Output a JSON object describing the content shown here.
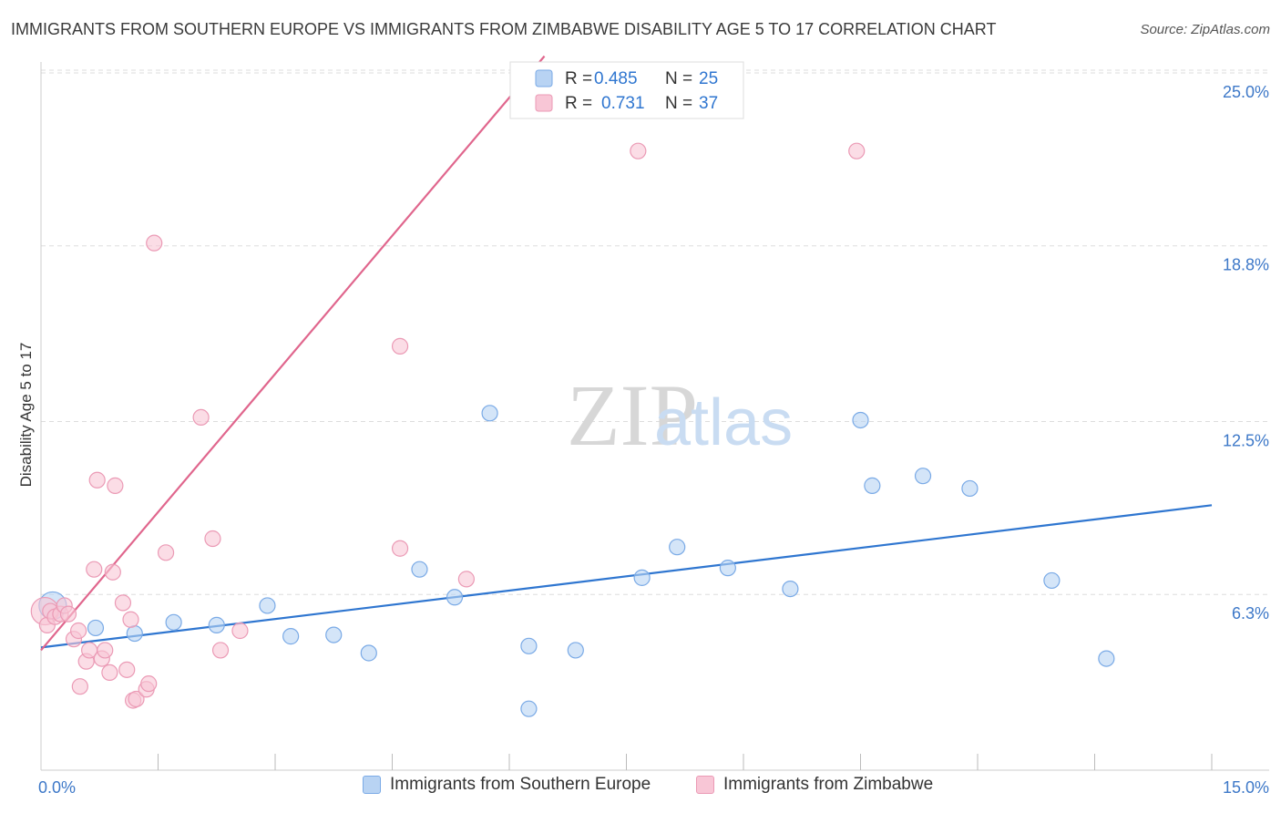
{
  "title": "IMMIGRANTS FROM SOUTHERN EUROPE VS IMMIGRANTS FROM ZIMBABWE DISABILITY AGE 5 TO 17 CORRELATION CHART",
  "source": "Source: ZipAtlas.com",
  "watermark": {
    "zip": "ZIP",
    "atlas": "atlas"
  },
  "colors": {
    "blue": "#2f76d0",
    "blue_fill": "#b8d3f3",
    "pink": "#e0668d",
    "pink_fill": "#f8c6d6",
    "axis_label": "#3d78c8",
    "grid": "#dddddd"
  },
  "chart_data": {
    "type": "scatter",
    "ylabel": "Disability Age 5 to 17",
    "xlim": [
      0,
      15
    ],
    "ylim": [
      0,
      25
    ],
    "x_tick_labels": [
      {
        "value": 0,
        "label": "0.0%"
      },
      {
        "value": 15,
        "label": "15.0%"
      }
    ],
    "y_ticks": [
      {
        "value": 6.3,
        "label": "6.3%"
      },
      {
        "value": 12.5,
        "label": "12.5%"
      },
      {
        "value": 18.8,
        "label": "18.8%"
      },
      {
        "value": 25.0,
        "label": "25.0%"
      }
    ],
    "series": [
      {
        "name": "Immigrants from Southern Europe",
        "color": "#2f76d0",
        "R": "0.485",
        "N": "25",
        "trend": {
          "x": [
            0,
            15
          ],
          "y": [
            4.4,
            9.5
          ]
        },
        "points": [
          {
            "x": 0.15,
            "y": 5.9,
            "big": true
          },
          {
            "x": 0.7,
            "y": 5.1
          },
          {
            "x": 1.2,
            "y": 4.9
          },
          {
            "x": 1.7,
            "y": 5.3
          },
          {
            "x": 2.25,
            "y": 5.2
          },
          {
            "x": 2.9,
            "y": 5.9
          },
          {
            "x": 3.2,
            "y": 4.8
          },
          {
            "x": 3.75,
            "y": 4.85
          },
          {
            "x": 4.2,
            "y": 4.2
          },
          {
            "x": 4.85,
            "y": 7.2
          },
          {
            "x": 5.3,
            "y": 6.2
          },
          {
            "x": 5.75,
            "y": 12.8
          },
          {
            "x": 6.25,
            "y": 2.2
          },
          {
            "x": 6.25,
            "y": 4.45
          },
          {
            "x": 6.85,
            "y": 4.3
          },
          {
            "x": 7.7,
            "y": 6.9
          },
          {
            "x": 8.15,
            "y": 8.0
          },
          {
            "x": 8.8,
            "y": 7.25
          },
          {
            "x": 9.6,
            "y": 6.5
          },
          {
            "x": 10.5,
            "y": 12.55
          },
          {
            "x": 10.65,
            "y": 10.2
          },
          {
            "x": 11.3,
            "y": 10.55
          },
          {
            "x": 11.9,
            "y": 10.1
          },
          {
            "x": 12.95,
            "y": 6.8
          },
          {
            "x": 13.65,
            "y": 4.0
          }
        ]
      },
      {
        "name": "Immigrants from Zimbabwe",
        "color": "#e0668d",
        "R": "0.731",
        "N": "37",
        "trend": {
          "x": [
            0,
            6.45
          ],
          "y": [
            4.3,
            25.6
          ]
        },
        "points": [
          {
            "x": 0.05,
            "y": 5.7,
            "big": true
          },
          {
            "x": 0.08,
            "y": 5.2
          },
          {
            "x": 0.12,
            "y": 5.7
          },
          {
            "x": 0.18,
            "y": 5.5
          },
          {
            "x": 0.25,
            "y": 5.6
          },
          {
            "x": 0.3,
            "y": 5.9
          },
          {
            "x": 0.35,
            "y": 5.6
          },
          {
            "x": 0.42,
            "y": 4.7
          },
          {
            "x": 0.48,
            "y": 5.0
          },
          {
            "x": 0.5,
            "y": 3.0
          },
          {
            "x": 0.58,
            "y": 3.9
          },
          {
            "x": 0.62,
            "y": 4.3
          },
          {
            "x": 0.68,
            "y": 7.2
          },
          {
            "x": 0.72,
            "y": 10.4
          },
          {
            "x": 0.78,
            "y": 4.0
          },
          {
            "x": 0.82,
            "y": 4.3
          },
          {
            "x": 0.88,
            "y": 3.5
          },
          {
            "x": 0.92,
            "y": 7.1
          },
          {
            "x": 0.95,
            "y": 10.2
          },
          {
            "x": 1.05,
            "y": 6.0
          },
          {
            "x": 1.1,
            "y": 3.6
          },
          {
            "x": 1.15,
            "y": 5.4
          },
          {
            "x": 1.18,
            "y": 2.5
          },
          {
            "x": 1.22,
            "y": 2.55
          },
          {
            "x": 1.35,
            "y": 2.9
          },
          {
            "x": 1.38,
            "y": 3.1
          },
          {
            "x": 1.45,
            "y": 18.9
          },
          {
            "x": 1.6,
            "y": 7.8
          },
          {
            "x": 2.05,
            "y": 12.65
          },
          {
            "x": 2.2,
            "y": 8.3
          },
          {
            "x": 2.3,
            "y": 4.3
          },
          {
            "x": 2.55,
            "y": 5.0
          },
          {
            "x": 4.6,
            "y": 7.95
          },
          {
            "x": 4.6,
            "y": 15.2
          },
          {
            "x": 5.45,
            "y": 6.85
          },
          {
            "x": 7.65,
            "y": 22.2
          },
          {
            "x": 10.45,
            "y": 22.2
          }
        ]
      }
    ]
  },
  "legend": {
    "r_label": "R =",
    "n_label": "N =",
    "items": [
      {
        "r": "0.485",
        "n": "25"
      },
      {
        "r": "0.731",
        "n": "37"
      }
    ]
  },
  "bottom_legend": [
    "Immigrants from Southern Europe",
    "Immigrants from Zimbabwe"
  ]
}
